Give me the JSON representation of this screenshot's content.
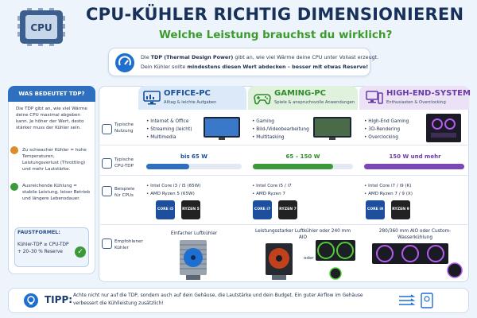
{
  "header": {
    "title": "CPU-KÜHLER RICHTIG DIMENSIONIEREN",
    "subtitle": "Welche Leistung brauchst du wirklich?",
    "chip_label": "CPU"
  },
  "intro": {
    "line1_pre": "Die ",
    "line1_bold": "TDP (Thermal Design Power)",
    "line1_post": " gibt an, wie viel Wärme deine CPU unter Vollast erzeugt.",
    "line2_pre": "Dein Kühler sollte ",
    "line2_bold": "mindestens diesen Wert abdecken – besser mit etwas Reserve!"
  },
  "left_panel": {
    "heading": "WAS BEDEUTET TDP?",
    "description": "Die TDP gibt an, wie viel Wärme deine CPU maximal abgeben kann. Je höher der Wert, desto stärker muss der Kühler sein.",
    "bullet1": "Zu schwacher Kühler = hohe Temperaturen, Leistungsverlust (Throttling) und mehr Lautstärke.",
    "bullet2": "Ausreichende Kühlung = stabile Leistung, leiser Betrieb und längere Lebensdauer.",
    "formula_title": "FAUSTFORMEL:",
    "formula_text": "Kühler-TDP ≥ CPU-TDP + 20–30 % Reserve"
  },
  "rows": {
    "usage": "Typische Nutzung",
    "tdp": "Typische CPU-TDP",
    "cpus": "Beispiele für CPUs",
    "cooler": "Empfohlener Kühler"
  },
  "columns": [
    {
      "title": "OFFICE-PC",
      "subtitle": "Alltag & leichte Aufgaben",
      "usage": [
        "Internet & Office",
        "Streaming (leicht)",
        "Multimedia"
      ],
      "tdp": "bis 65 W",
      "tdp_level": 0.45,
      "cpus": [
        "Intel Core i3 / i5 (65W)",
        "AMD Ryzen 5 (65W)"
      ],
      "chip_a": "CORE i5",
      "chip_b": "RYZEN 5",
      "cooler": "Einfacher Luftkühler",
      "color": "#2f6fc0"
    },
    {
      "title": "GAMING-PC",
      "subtitle": "Spiele & anspruchsvolle Anwendungen",
      "usage": [
        "Gaming",
        "Bild-/Videobearbeitung",
        "Multitasking"
      ],
      "tdp": "65 – 150 W",
      "tdp_level": 0.8,
      "cpus": [
        "Intel Core i5 / i7",
        "AMD Ryzen 7"
      ],
      "chip_a": "CORE i7",
      "chip_b": "RYZEN 7",
      "cooler": "Leistungsstarker Luftkühler oder 240 mm AIO",
      "cooler_or": "oder",
      "color": "#3a9a3a"
    },
    {
      "title": "HIGH-END-SYSTEM",
      "subtitle": "Enthusiasten & Overclocking",
      "usage": [
        "High-End Gaming",
        "3D-Rendering",
        "Overclocking"
      ],
      "tdp": "150 W und mehr",
      "tdp_level": 1.0,
      "cpus": [
        "Intel Core i7 / i9 (K)",
        "AMD Ryzen 7 / 9 (X)"
      ],
      "chip_a": "CORE i9",
      "chip_b": "RYZEN 9",
      "cooler": "280/360 mm AIO oder Custom-Wasserkühlung",
      "color": "#7a46b8"
    }
  ],
  "tip": {
    "label": "TIPP:",
    "text": "Achte nicht nur auf die TDP, sondern auch auf dein Gehäuse, die Lautstärke und dein Budget. Ein guter Airflow im Gehäuse verbessert die Kühlleistung zusätzlich!"
  }
}
